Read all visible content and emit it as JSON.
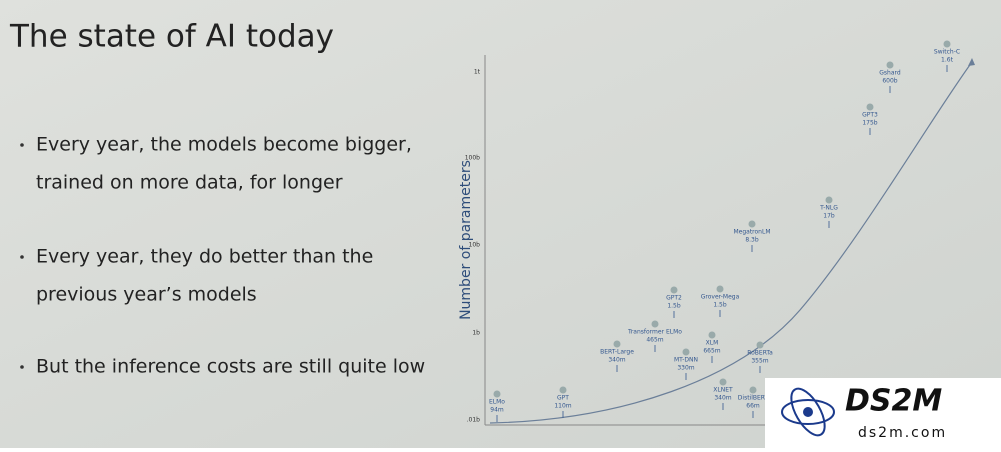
{
  "slide": {
    "title": "The state of AI today",
    "bullets": [
      [
        "Every year, the models become bigger,",
        "trained on more data, for longer"
      ],
      [
        "Every year, they do better than the",
        "previous year’s models"
      ],
      [
        "But the inference costs are still quite low"
      ]
    ],
    "figure": {
      "y_axis_label": "Number of parameters",
      "y_tick_labels": [
        "1t",
        "100b",
        "10b",
        "1b",
        ".01b"
      ],
      "models": [
        {
          "name": "ELMo",
          "size": "94m"
        },
        {
          "name": "GPT",
          "size": "110m"
        },
        {
          "name": "BERT-Large",
          "size": "340m"
        },
        {
          "name": "Transformer ELMo",
          "size": "465m"
        },
        {
          "name": "GPT2",
          "size": "1.5b"
        },
        {
          "name": "MT-DNN",
          "size": "330m"
        },
        {
          "name": "Grover-Mega",
          "size": "1.5b"
        },
        {
          "name": "XLM",
          "size": "665m"
        },
        {
          "name": "RoBERTa",
          "size": "355m"
        },
        {
          "name": "XLNET",
          "size": "340m"
        },
        {
          "name": "DistilBERT",
          "size": "66m"
        },
        {
          "name": "MegatronLM",
          "size": "8.3b"
        },
        {
          "name": "T-NLG",
          "size": "17b"
        },
        {
          "name": "GPT3",
          "size": "175b"
        },
        {
          "name": "Gshard",
          "size": "600b"
        },
        {
          "name": "Switch-C",
          "size": "1.6t"
        }
      ]
    },
    "watermark": {
      "brand": "DS2M",
      "site": "ds2m.com"
    }
  }
}
